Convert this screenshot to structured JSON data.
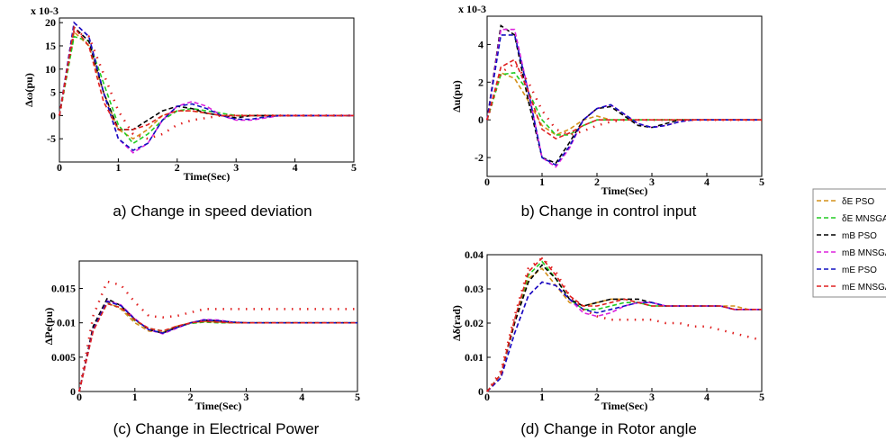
{
  "chart_data": [
    {
      "type": "line",
      "title": "a) Change in speed deviation",
      "xlabel": "Time(Sec)",
      "ylabel": "Δω(pu)",
      "multiplier": "x 10-3",
      "x": [
        0,
        0.25,
        0.5,
        0.75,
        1,
        1.25,
        1.5,
        1.75,
        2,
        2.25,
        2.5,
        2.75,
        3,
        3.25,
        3.5,
        3.75,
        4,
        4.25,
        4.5,
        4.75,
        5
      ],
      "xlim": [
        0,
        5
      ],
      "xticks": [
        0,
        1,
        2,
        3,
        4,
        5
      ],
      "ylim": [
        -10,
        21
      ],
      "yticks": [
        -5,
        0,
        5,
        10,
        15,
        20
      ],
      "series": [
        {
          "color": "#d4901a",
          "values": [
            0,
            18,
            15,
            5,
            -3,
            -5,
            -3,
            0,
            1,
            1,
            0.5,
            0,
            0,
            0,
            0,
            0,
            0,
            0,
            0,
            0,
            0
          ]
        },
        {
          "color": "#22cc22",
          "values": [
            0,
            17,
            16,
            7,
            -2,
            -6,
            -4,
            -1,
            1,
            1.5,
            1,
            0.5,
            0,
            0,
            0,
            0,
            0,
            0,
            0,
            0,
            0
          ]
        },
        {
          "color": "#000000",
          "values": [
            0,
            19,
            16,
            5,
            -3,
            -3,
            -1,
            1,
            2,
            1.5,
            0.5,
            0,
            -0.5,
            0,
            0,
            0,
            0,
            0,
            0,
            0,
            0
          ]
        },
        {
          "color": "#dd22dd",
          "values": [
            0,
            20,
            17,
            5,
            -5,
            -8,
            -6,
            -1,
            2,
            3,
            2,
            0,
            -1,
            -1,
            -0.5,
            0,
            0,
            0,
            0,
            0,
            0
          ]
        },
        {
          "color": "#1010c0",
          "values": [
            0,
            20,
            17,
            5,
            -5,
            -7.5,
            -6,
            -1,
            2,
            2.5,
            1.5,
            0,
            -0.8,
            -0.8,
            -0.3,
            0,
            0,
            0,
            0,
            0,
            0
          ]
        },
        {
          "color": "#e02020",
          "values": [
            0,
            19,
            15,
            3,
            -3,
            -3,
            -2,
            0,
            1,
            1,
            0.5,
            0,
            0,
            0,
            0,
            0,
            0,
            0,
            0,
            0,
            0
          ]
        },
        {
          "color": "#e02020",
          "dotted": true,
          "values": [
            0,
            18,
            17,
            9,
            1,
            -4,
            -5,
            -4,
            -2,
            -1,
            -0.5,
            0,
            0,
            0,
            0,
            0,
            0,
            0,
            0,
            0,
            0
          ]
        }
      ]
    },
    {
      "type": "line",
      "title": "b) Change in control input",
      "xlabel": "Time(Sec)",
      "ylabel": "Δu(pu)",
      "multiplier": "x 10-3",
      "x": [
        0,
        0.25,
        0.5,
        0.75,
        1,
        1.25,
        1.5,
        1.75,
        2,
        2.25,
        2.5,
        2.75,
        3,
        3.25,
        3.5,
        3.75,
        4,
        4.25,
        4.5,
        4.75,
        5
      ],
      "xlim": [
        0,
        5
      ],
      "xticks": [
        0,
        1,
        2,
        3,
        4,
        5
      ],
      "ylim": [
        -3,
        5.5
      ],
      "yticks": [
        -2,
        0,
        2,
        4
      ],
      "series": [
        {
          "color": "#d4901a",
          "values": [
            0,
            2.5,
            2.2,
            1,
            -0.3,
            -0.8,
            -0.5,
            0,
            0.2,
            0,
            0,
            0,
            0,
            0,
            0,
            0,
            0,
            0,
            0,
            0,
            0
          ]
        },
        {
          "color": "#22cc22",
          "values": [
            0,
            2.4,
            2.5,
            1.5,
            0,
            -0.8,
            -0.8,
            -0.3,
            0,
            0,
            0,
            0,
            0,
            0,
            0,
            0,
            0,
            0,
            0,
            0,
            0
          ]
        },
        {
          "color": "#000000",
          "values": [
            0,
            5,
            4.5,
            1,
            -2,
            -2.3,
            -1.2,
            0,
            0.6,
            0.7,
            0.2,
            -0.3,
            -0.4,
            -0.2,
            0,
            0,
            0,
            0,
            0,
            0,
            0
          ]
        },
        {
          "color": "#dd22dd",
          "values": [
            0,
            4.8,
            4.8,
            1.5,
            -2,
            -2.5,
            -1.5,
            0,
            0.6,
            0.8,
            0.3,
            -0.2,
            -0.4,
            -0.3,
            -0.1,
            0,
            0,
            0,
            0,
            0,
            0
          ]
        },
        {
          "color": "#1010c0",
          "values": [
            0,
            4.5,
            4.5,
            1.5,
            -2,
            -2.4,
            -1.4,
            0,
            0.6,
            0.8,
            0.3,
            -0.2,
            -0.4,
            -0.3,
            -0.1,
            0,
            0,
            0,
            0,
            0,
            0
          ]
        },
        {
          "color": "#e02020",
          "values": [
            0,
            2.8,
            3.2,
            1.5,
            -0.5,
            -1,
            -0.7,
            -0.3,
            0,
            0,
            0,
            0,
            0,
            0,
            0,
            0,
            0,
            0,
            0,
            0,
            0
          ]
        },
        {
          "color": "#e02020",
          "dotted": true,
          "values": [
            0,
            2.5,
            3,
            2,
            0.5,
            -0.5,
            -0.8,
            -0.6,
            -0.3,
            -0.1,
            0,
            0,
            0,
            0,
            0,
            0,
            0,
            0,
            0,
            0,
            0
          ]
        }
      ]
    },
    {
      "type": "line",
      "title": "(c) Change in Electrical Power",
      "xlabel": "Time(Sec)",
      "ylabel": "ΔPe(pu)",
      "x": [
        0,
        0.25,
        0.5,
        0.75,
        1,
        1.25,
        1.5,
        1.75,
        2,
        2.25,
        2.5,
        2.75,
        3,
        3.25,
        3.5,
        3.75,
        4,
        4.25,
        4.5,
        4.75,
        5
      ],
      "xlim": [
        0,
        5
      ],
      "xticks": [
        0,
        1,
        2,
        3,
        4,
        5
      ],
      "ylim": [
        0,
        0.019
      ],
      "yticks": [
        0,
        0.005,
        0.01,
        0.015
      ],
      "series": [
        {
          "color": "#d4901a",
          "values": [
            0,
            0.009,
            0.013,
            0.012,
            0.01,
            0.0088,
            0.0086,
            0.0095,
            0.01,
            0.0102,
            0.0101,
            0.01,
            0.01,
            0.01,
            0.01,
            0.01,
            0.01,
            0.01,
            0.01,
            0.01,
            0.01
          ]
        },
        {
          "color": "#22cc22",
          "values": [
            0,
            0.009,
            0.0128,
            0.0122,
            0.0103,
            0.0092,
            0.0088,
            0.0094,
            0.0099,
            0.0101,
            0.01,
            0.01,
            0.01,
            0.01,
            0.01,
            0.01,
            0.01,
            0.01,
            0.01,
            0.01,
            0.01
          ]
        },
        {
          "color": "#000000",
          "values": [
            0,
            0.0095,
            0.0135,
            0.0125,
            0.0105,
            0.009,
            0.0085,
            0.0093,
            0.01,
            0.0104,
            0.0103,
            0.0101,
            0.01,
            0.01,
            0.01,
            0.01,
            0.01,
            0.01,
            0.01,
            0.01,
            0.01
          ]
        },
        {
          "color": "#dd22dd",
          "values": [
            0,
            0.009,
            0.0132,
            0.0126,
            0.0106,
            0.009,
            0.0084,
            0.0092,
            0.01,
            0.0105,
            0.0104,
            0.0101,
            0.01,
            0.01,
            0.01,
            0.01,
            0.01,
            0.01,
            0.01,
            0.01,
            0.01
          ]
        },
        {
          "color": "#1010c0",
          "values": [
            0,
            0.009,
            0.0131,
            0.0125,
            0.0105,
            0.009,
            0.0085,
            0.0093,
            0.01,
            0.0104,
            0.0103,
            0.0101,
            0.01,
            0.01,
            0.01,
            0.01,
            0.01,
            0.01,
            0.01,
            0.01,
            0.01
          ]
        },
        {
          "color": "#e02020",
          "values": [
            0,
            0.0088,
            0.0128,
            0.0122,
            0.0104,
            0.0092,
            0.0088,
            0.0095,
            0.01,
            0.0102,
            0.0101,
            0.01,
            0.01,
            0.01,
            0.01,
            0.01,
            0.01,
            0.01,
            0.01,
            0.01,
            0.01
          ]
        },
        {
          "color": "#e02020",
          "dotted": true,
          "values": [
            0,
            0.011,
            0.016,
            0.0155,
            0.013,
            0.011,
            0.0108,
            0.011,
            0.0115,
            0.012,
            0.012,
            0.012,
            0.012,
            0.012,
            0.012,
            0.012,
            0.012,
            0.012,
            0.012,
            0.012,
            0.012
          ]
        }
      ]
    },
    {
      "type": "line",
      "title": "(d) Change in Rotor angle",
      "xlabel": "Time(Sec)",
      "ylabel": "Δδ(rad)",
      "x": [
        0,
        0.25,
        0.5,
        0.75,
        1,
        1.25,
        1.5,
        1.75,
        2,
        2.25,
        2.5,
        2.75,
        3,
        3.25,
        3.5,
        3.75,
        4,
        4.25,
        4.5,
        4.75,
        5
      ],
      "xlim": [
        0,
        5
      ],
      "xticks": [
        0,
        1,
        2,
        3,
        4,
        5
      ],
      "ylim": [
        0,
        0.04
      ],
      "yticks": [
        0,
        0.01,
        0.02,
        0.03,
        0.04
      ],
      "series": [
        {
          "color": "#d4901a",
          "values": [
            0,
            0.005,
            0.02,
            0.033,
            0.036,
            0.031,
            0.026,
            0.025,
            0.026,
            0.027,
            0.027,
            0.026,
            0.025,
            0.025,
            0.025,
            0.025,
            0.025,
            0.025,
            0.025,
            0.024,
            0.024
          ]
        },
        {
          "color": "#22cc22",
          "values": [
            0,
            0.005,
            0.021,
            0.034,
            0.038,
            0.033,
            0.027,
            0.024,
            0.024,
            0.025,
            0.026,
            0.026,
            0.025,
            0.025,
            0.025,
            0.025,
            0.025,
            0.025,
            0.024,
            0.024,
            0.024
          ]
        },
        {
          "color": "#000000",
          "values": [
            0,
            0.005,
            0.02,
            0.032,
            0.037,
            0.033,
            0.027,
            0.025,
            0.026,
            0.027,
            0.027,
            0.027,
            0.026,
            0.025,
            0.025,
            0.025,
            0.025,
            0.025,
            0.024,
            0.024,
            0.024
          ]
        },
        {
          "color": "#dd22dd",
          "values": [
            0,
            0.004,
            0.017,
            0.028,
            0.032,
            0.031,
            0.027,
            0.023,
            0.022,
            0.023,
            0.025,
            0.026,
            0.026,
            0.025,
            0.025,
            0.025,
            0.025,
            0.025,
            0.024,
            0.024,
            0.024
          ]
        },
        {
          "color": "#1010c0",
          "values": [
            0,
            0.004,
            0.017,
            0.028,
            0.032,
            0.031,
            0.027,
            0.024,
            0.023,
            0.024,
            0.025,
            0.026,
            0.026,
            0.025,
            0.025,
            0.025,
            0.025,
            0.025,
            0.024,
            0.024,
            0.024
          ]
        },
        {
          "color": "#e02020",
          "values": [
            0,
            0.005,
            0.021,
            0.035,
            0.039,
            0.034,
            0.028,
            0.025,
            0.025,
            0.026,
            0.027,
            0.026,
            0.025,
            0.025,
            0.025,
            0.025,
            0.025,
            0.025,
            0.024,
            0.024,
            0.024
          ]
        },
        {
          "color": "#e02020",
          "dotted": true,
          "values": [
            0,
            0.006,
            0.022,
            0.036,
            0.039,
            0.035,
            0.028,
            0.024,
            0.022,
            0.021,
            0.021,
            0.021,
            0.021,
            0.02,
            0.02,
            0.019,
            0.019,
            0.018,
            0.017,
            0.016,
            0.015
          ]
        }
      ]
    }
  ],
  "legend": [
    {
      "name": "δE PSO",
      "color": "#d4901a"
    },
    {
      "name": "δE MNSGA",
      "color": "#22cc22"
    },
    {
      "name": "mB PSO",
      "color": "#000000"
    },
    {
      "name": "mB MNSGA",
      "color": "#dd22dd"
    },
    {
      "name": "mE PSO",
      "color": "#1010c0"
    },
    {
      "name": "mE MNSGA",
      "color": "#e02020"
    }
  ]
}
